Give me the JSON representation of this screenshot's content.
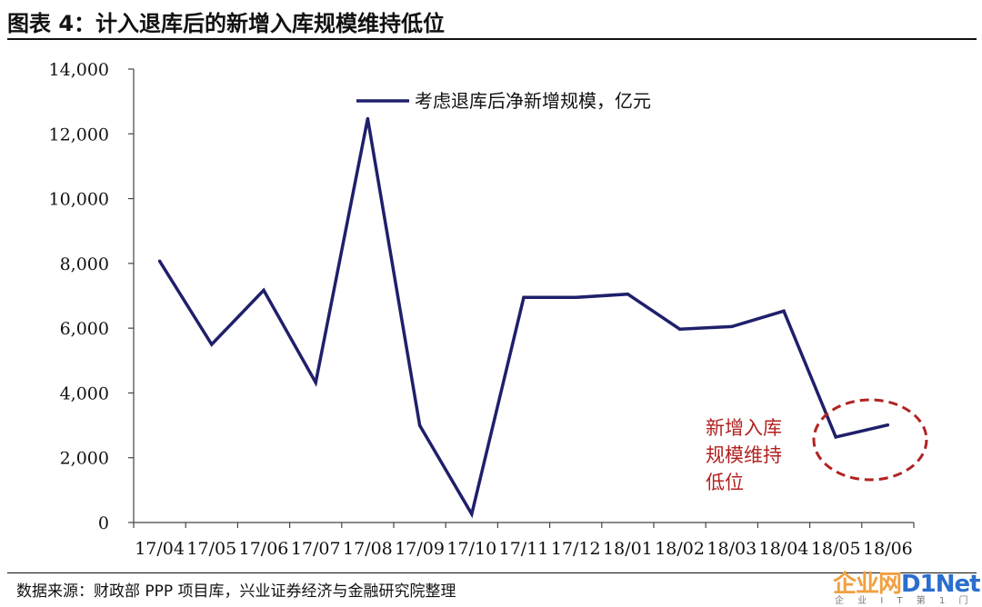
{
  "figure_title": "图表 4：计入退库后的新增入库规模维持低位",
  "source_note": "数据来源：财政部 PPP 项目库，兴业证券经济与金融研究院整理",
  "watermark": {
    "cn": "企业网",
    "en": "D1Net",
    "sub": "企 业 I T 第 1 门 户"
  },
  "annotation": {
    "lines": [
      "新增入库",
      "规模维持",
      "低位"
    ],
    "color": "#b22222"
  },
  "colors": {
    "line": "#1f1f6b",
    "axis": "#444444",
    "annotation": "#b22222"
  },
  "chart_data": {
    "type": "line",
    "categories": [
      "17/04",
      "17/05",
      "17/06",
      "17/07",
      "17/08",
      "17/09",
      "17/10",
      "17/11",
      "17/12",
      "18/01",
      "18/02",
      "18/03",
      "18/04",
      "18/05",
      "18/06"
    ],
    "series": [
      {
        "name": "考虑退库后净新增规模，亿元",
        "values": [
          8070,
          5500,
          7170,
          4320,
          12470,
          3000,
          260,
          6950,
          6950,
          7050,
          5970,
          6050,
          6530,
          2640,
          3010
        ]
      }
    ],
    "ylim": [
      0,
      14000
    ],
    "yticks": [
      0,
      2000,
      4000,
      6000,
      8000,
      10000,
      12000,
      14000
    ],
    "ytick_labels": [
      "0",
      "2,000",
      "4,000",
      "6,000",
      "8,000",
      "10,000",
      "12,000",
      "14,000"
    ],
    "legend_position": "top-center",
    "grid": false
  }
}
